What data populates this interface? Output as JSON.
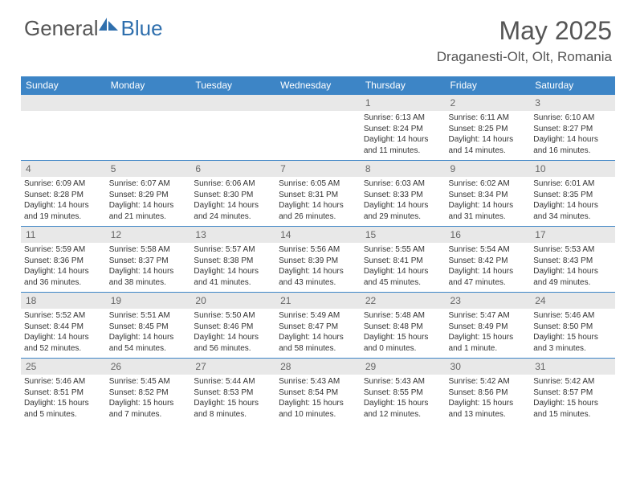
{
  "logo": {
    "text_general": "General",
    "text_blue": "Blue",
    "icon_color": "#2f6fad"
  },
  "title": "May 2025",
  "location": "Draganesti-Olt, Olt, Romania",
  "colors": {
    "header_bg": "#3d85c6",
    "header_text": "#ffffff",
    "day_number_bg": "#e8e8e8",
    "day_number_text": "#666666",
    "cell_border": "#3d85c6",
    "body_text": "#333333",
    "title_text": "#555555"
  },
  "weekdays": [
    "Sunday",
    "Monday",
    "Tuesday",
    "Wednesday",
    "Thursday",
    "Friday",
    "Saturday"
  ],
  "weeks": [
    [
      {
        "day": "",
        "sunrise": "",
        "sunset": "",
        "daylight": ""
      },
      {
        "day": "",
        "sunrise": "",
        "sunset": "",
        "daylight": ""
      },
      {
        "day": "",
        "sunrise": "",
        "sunset": "",
        "daylight": ""
      },
      {
        "day": "",
        "sunrise": "",
        "sunset": "",
        "daylight": ""
      },
      {
        "day": "1",
        "sunrise": "Sunrise: 6:13 AM",
        "sunset": "Sunset: 8:24 PM",
        "daylight": "Daylight: 14 hours and 11 minutes."
      },
      {
        "day": "2",
        "sunrise": "Sunrise: 6:11 AM",
        "sunset": "Sunset: 8:25 PM",
        "daylight": "Daylight: 14 hours and 14 minutes."
      },
      {
        "day": "3",
        "sunrise": "Sunrise: 6:10 AM",
        "sunset": "Sunset: 8:27 PM",
        "daylight": "Daylight: 14 hours and 16 minutes."
      }
    ],
    [
      {
        "day": "4",
        "sunrise": "Sunrise: 6:09 AM",
        "sunset": "Sunset: 8:28 PM",
        "daylight": "Daylight: 14 hours and 19 minutes."
      },
      {
        "day": "5",
        "sunrise": "Sunrise: 6:07 AM",
        "sunset": "Sunset: 8:29 PM",
        "daylight": "Daylight: 14 hours and 21 minutes."
      },
      {
        "day": "6",
        "sunrise": "Sunrise: 6:06 AM",
        "sunset": "Sunset: 8:30 PM",
        "daylight": "Daylight: 14 hours and 24 minutes."
      },
      {
        "day": "7",
        "sunrise": "Sunrise: 6:05 AM",
        "sunset": "Sunset: 8:31 PM",
        "daylight": "Daylight: 14 hours and 26 minutes."
      },
      {
        "day": "8",
        "sunrise": "Sunrise: 6:03 AM",
        "sunset": "Sunset: 8:33 PM",
        "daylight": "Daylight: 14 hours and 29 minutes."
      },
      {
        "day": "9",
        "sunrise": "Sunrise: 6:02 AM",
        "sunset": "Sunset: 8:34 PM",
        "daylight": "Daylight: 14 hours and 31 minutes."
      },
      {
        "day": "10",
        "sunrise": "Sunrise: 6:01 AM",
        "sunset": "Sunset: 8:35 PM",
        "daylight": "Daylight: 14 hours and 34 minutes."
      }
    ],
    [
      {
        "day": "11",
        "sunrise": "Sunrise: 5:59 AM",
        "sunset": "Sunset: 8:36 PM",
        "daylight": "Daylight: 14 hours and 36 minutes."
      },
      {
        "day": "12",
        "sunrise": "Sunrise: 5:58 AM",
        "sunset": "Sunset: 8:37 PM",
        "daylight": "Daylight: 14 hours and 38 minutes."
      },
      {
        "day": "13",
        "sunrise": "Sunrise: 5:57 AM",
        "sunset": "Sunset: 8:38 PM",
        "daylight": "Daylight: 14 hours and 41 minutes."
      },
      {
        "day": "14",
        "sunrise": "Sunrise: 5:56 AM",
        "sunset": "Sunset: 8:39 PM",
        "daylight": "Daylight: 14 hours and 43 minutes."
      },
      {
        "day": "15",
        "sunrise": "Sunrise: 5:55 AM",
        "sunset": "Sunset: 8:41 PM",
        "daylight": "Daylight: 14 hours and 45 minutes."
      },
      {
        "day": "16",
        "sunrise": "Sunrise: 5:54 AM",
        "sunset": "Sunset: 8:42 PM",
        "daylight": "Daylight: 14 hours and 47 minutes."
      },
      {
        "day": "17",
        "sunrise": "Sunrise: 5:53 AM",
        "sunset": "Sunset: 8:43 PM",
        "daylight": "Daylight: 14 hours and 49 minutes."
      }
    ],
    [
      {
        "day": "18",
        "sunrise": "Sunrise: 5:52 AM",
        "sunset": "Sunset: 8:44 PM",
        "daylight": "Daylight: 14 hours and 52 minutes."
      },
      {
        "day": "19",
        "sunrise": "Sunrise: 5:51 AM",
        "sunset": "Sunset: 8:45 PM",
        "daylight": "Daylight: 14 hours and 54 minutes."
      },
      {
        "day": "20",
        "sunrise": "Sunrise: 5:50 AM",
        "sunset": "Sunset: 8:46 PM",
        "daylight": "Daylight: 14 hours and 56 minutes."
      },
      {
        "day": "21",
        "sunrise": "Sunrise: 5:49 AM",
        "sunset": "Sunset: 8:47 PM",
        "daylight": "Daylight: 14 hours and 58 minutes."
      },
      {
        "day": "22",
        "sunrise": "Sunrise: 5:48 AM",
        "sunset": "Sunset: 8:48 PM",
        "daylight": "Daylight: 15 hours and 0 minutes."
      },
      {
        "day": "23",
        "sunrise": "Sunrise: 5:47 AM",
        "sunset": "Sunset: 8:49 PM",
        "daylight": "Daylight: 15 hours and 1 minute."
      },
      {
        "day": "24",
        "sunrise": "Sunrise: 5:46 AM",
        "sunset": "Sunset: 8:50 PM",
        "daylight": "Daylight: 15 hours and 3 minutes."
      }
    ],
    [
      {
        "day": "25",
        "sunrise": "Sunrise: 5:46 AM",
        "sunset": "Sunset: 8:51 PM",
        "daylight": "Daylight: 15 hours and 5 minutes."
      },
      {
        "day": "26",
        "sunrise": "Sunrise: 5:45 AM",
        "sunset": "Sunset: 8:52 PM",
        "daylight": "Daylight: 15 hours and 7 minutes."
      },
      {
        "day": "27",
        "sunrise": "Sunrise: 5:44 AM",
        "sunset": "Sunset: 8:53 PM",
        "daylight": "Daylight: 15 hours and 8 minutes."
      },
      {
        "day": "28",
        "sunrise": "Sunrise: 5:43 AM",
        "sunset": "Sunset: 8:54 PM",
        "daylight": "Daylight: 15 hours and 10 minutes."
      },
      {
        "day": "29",
        "sunrise": "Sunrise: 5:43 AM",
        "sunset": "Sunset: 8:55 PM",
        "daylight": "Daylight: 15 hours and 12 minutes."
      },
      {
        "day": "30",
        "sunrise": "Sunrise: 5:42 AM",
        "sunset": "Sunset: 8:56 PM",
        "daylight": "Daylight: 15 hours and 13 minutes."
      },
      {
        "day": "31",
        "sunrise": "Sunrise: 5:42 AM",
        "sunset": "Sunset: 8:57 PM",
        "daylight": "Daylight: 15 hours and 15 minutes."
      }
    ]
  ]
}
